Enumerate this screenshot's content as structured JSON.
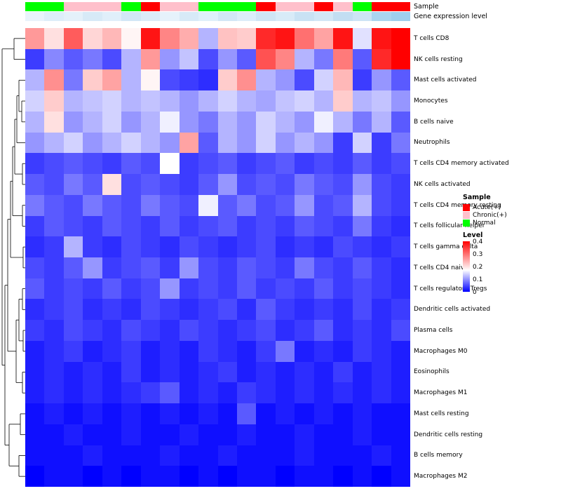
{
  "chart_data": {
    "type": "heatmap",
    "title": "",
    "rows": [
      "T cells CD8",
      "NK cells resting",
      "Mast cells activated",
      "Monocytes",
      "B cells naive",
      "Neutrophils",
      "T cells CD4 memory activated",
      "NK cells activated",
      "T cells CD4 memory resting",
      "T cells follicular helper",
      "T cells gamma delta",
      "T cells CD4 naive",
      "T cells regulatory  Tregs",
      "Dendritic cells activated",
      "Plasma cells",
      "Macrophages M0",
      "Eosinophils",
      "Macrophages M1",
      "Mast cells resting",
      "Dendritic cells resting",
      "B cells memory",
      "Macrophages M2"
    ],
    "num_columns": 20,
    "value_range": [
      0,
      0.4
    ],
    "colormap": {
      "low": "#0000ff",
      "mid": "#ffffff",
      "high": "#ff0000",
      "mid_value": 0.17,
      "max_value": 0.42
    },
    "values": [
      [
        0.27,
        0.2,
        0.33,
        0.21,
        0.24,
        0.18,
        0.4,
        0.29,
        0.25,
        0.12,
        0.23,
        0.22,
        0.38,
        0.4,
        0.31,
        0.26,
        0.4,
        0.15,
        0.4,
        0.42
      ],
      [
        0.04,
        0.09,
        0.06,
        0.08,
        0.05,
        0.12,
        0.27,
        0.1,
        0.13,
        0.05,
        0.1,
        0.06,
        0.34,
        0.29,
        0.12,
        0.08,
        0.3,
        0.06,
        0.38,
        0.42
      ],
      [
        0.12,
        0.28,
        0.08,
        0.22,
        0.26,
        0.12,
        0.18,
        0.05,
        0.04,
        0.03,
        0.22,
        0.28,
        0.12,
        0.1,
        0.05,
        0.14,
        0.24,
        0.04,
        0.1,
        0.06
      ],
      [
        0.14,
        0.22,
        0.12,
        0.13,
        0.14,
        0.12,
        0.13,
        0.12,
        0.1,
        0.12,
        0.14,
        0.12,
        0.11,
        0.13,
        0.14,
        0.12,
        0.22,
        0.12,
        0.13,
        0.1
      ],
      [
        0.12,
        0.2,
        0.1,
        0.12,
        0.14,
        0.1,
        0.12,
        0.16,
        0.1,
        0.08,
        0.12,
        0.1,
        0.14,
        0.12,
        0.1,
        0.16,
        0.12,
        0.08,
        0.12,
        0.06
      ],
      [
        0.1,
        0.12,
        0.14,
        0.1,
        0.12,
        0.14,
        0.12,
        0.1,
        0.26,
        0.06,
        0.12,
        0.1,
        0.14,
        0.1,
        0.12,
        0.1,
        0.04,
        0.14,
        0.04,
        0.08
      ],
      [
        0.04,
        0.05,
        0.06,
        0.05,
        0.04,
        0.06,
        0.05,
        0.17,
        0.04,
        0.05,
        0.06,
        0.04,
        0.05,
        0.06,
        0.04,
        0.05,
        0.04,
        0.06,
        0.04,
        0.05
      ],
      [
        0.06,
        0.05,
        0.08,
        0.06,
        0.2,
        0.05,
        0.06,
        0.05,
        0.04,
        0.06,
        0.1,
        0.05,
        0.06,
        0.05,
        0.08,
        0.06,
        0.05,
        0.1,
        0.05,
        0.04
      ],
      [
        0.08,
        0.06,
        0.05,
        0.08,
        0.06,
        0.05,
        0.08,
        0.06,
        0.05,
        0.16,
        0.06,
        0.08,
        0.05,
        0.06,
        0.1,
        0.05,
        0.06,
        0.12,
        0.05,
        0.04
      ],
      [
        0.04,
        0.06,
        0.05,
        0.04,
        0.06,
        0.05,
        0.04,
        0.06,
        0.04,
        0.05,
        0.06,
        0.04,
        0.05,
        0.04,
        0.06,
        0.05,
        0.04,
        0.08,
        0.04,
        0.03
      ],
      [
        0.03,
        0.04,
        0.12,
        0.04,
        0.03,
        0.05,
        0.04,
        0.03,
        0.05,
        0.04,
        0.03,
        0.04,
        0.05,
        0.03,
        0.04,
        0.03,
        0.05,
        0.04,
        0.03,
        0.04
      ],
      [
        0.05,
        0.04,
        0.06,
        0.1,
        0.04,
        0.05,
        0.06,
        0.04,
        0.1,
        0.05,
        0.04,
        0.06,
        0.05,
        0.04,
        0.08,
        0.05,
        0.04,
        0.06,
        0.04,
        0.03
      ],
      [
        0.06,
        0.04,
        0.05,
        0.04,
        0.06,
        0.04,
        0.05,
        0.1,
        0.04,
        0.05,
        0.04,
        0.06,
        0.04,
        0.05,
        0.04,
        0.06,
        0.04,
        0.05,
        0.04,
        0.03
      ],
      [
        0.03,
        0.04,
        0.05,
        0.03,
        0.04,
        0.03,
        0.05,
        0.04,
        0.03,
        0.04,
        0.05,
        0.03,
        0.06,
        0.04,
        0.03,
        0.04,
        0.03,
        0.05,
        0.03,
        0.04
      ],
      [
        0.04,
        0.03,
        0.05,
        0.04,
        0.03,
        0.05,
        0.04,
        0.03,
        0.05,
        0.04,
        0.03,
        0.04,
        0.05,
        0.03,
        0.04,
        0.06,
        0.03,
        0.04,
        0.03,
        0.05
      ],
      [
        0.02,
        0.03,
        0.04,
        0.02,
        0.03,
        0.04,
        0.02,
        0.03,
        0.02,
        0.04,
        0.03,
        0.02,
        0.04,
        0.08,
        0.02,
        0.03,
        0.02,
        0.04,
        0.03,
        0.02
      ],
      [
        0.02,
        0.03,
        0.02,
        0.03,
        0.02,
        0.04,
        0.02,
        0.03,
        0.02,
        0.03,
        0.04,
        0.02,
        0.03,
        0.02,
        0.03,
        0.02,
        0.04,
        0.02,
        0.03,
        0.02
      ],
      [
        0.02,
        0.03,
        0.02,
        0.03,
        0.02,
        0.03,
        0.04,
        0.06,
        0.02,
        0.03,
        0.02,
        0.04,
        0.03,
        0.02,
        0.03,
        0.02,
        0.03,
        0.02,
        0.03,
        0.02
      ],
      [
        0.01,
        0.02,
        0.01,
        0.02,
        0.01,
        0.02,
        0.01,
        0.02,
        0.01,
        0.02,
        0.01,
        0.06,
        0.01,
        0.02,
        0.01,
        0.02,
        0.01,
        0.02,
        0.01,
        0.01
      ],
      [
        0.01,
        0.01,
        0.02,
        0.01,
        0.01,
        0.02,
        0.01,
        0.01,
        0.02,
        0.01,
        0.01,
        0.02,
        0.01,
        0.01,
        0.02,
        0.01,
        0.01,
        0.02,
        0.01,
        0.01
      ],
      [
        0.01,
        0.01,
        0.01,
        0.02,
        0.01,
        0.01,
        0.01,
        0.02,
        0.01,
        0.01,
        0.02,
        0.01,
        0.01,
        0.01,
        0.02,
        0.01,
        0.01,
        0.01,
        0.02,
        0.01
      ],
      [
        0.0,
        0.01,
        0.01,
        0.0,
        0.01,
        0.0,
        0.01,
        0.01,
        0.0,
        0.01,
        0.0,
        0.01,
        0.01,
        0.0,
        0.01,
        0.01,
        0.0,
        0.01,
        0.0,
        0.01
      ]
    ],
    "column_annotations": {
      "sample": {
        "label": "Sample",
        "values": [
          "Normal",
          "Normal",
          "Chronic(+)",
          "Chronic(+)",
          "Chronic(+)",
          "Normal",
          "Acute(+)",
          "Chronic(+)",
          "Chronic(+)",
          "Normal",
          "Normal",
          "Normal",
          "Acute(+)",
          "Chronic(+)",
          "Chronic(+)",
          "Acute(+)",
          "Chronic(+)",
          "Normal",
          "Acute(+)",
          "Acute(+)"
        ],
        "colors": {
          "Acute(+)": "#ff0000",
          "Chronic(+)": "#ffc0cb",
          "Normal": "#00ff00"
        }
      },
      "expression": {
        "label": "Gene expression level",
        "cell_colors": [
          "#e9f3fb",
          "#ddeef9",
          "#e4f1fa",
          "#d7eaf7",
          "#e0effa",
          "#d2e7f6",
          "#dbecf8",
          "#e6f2fb",
          "#d7eaf7",
          "#dff0fa",
          "#d2e7f6",
          "#dcedf9",
          "#cfe5f5",
          "#d8ebf8",
          "#c9e2f4",
          "#d2e7f6",
          "#c2def2",
          "#cde4f5",
          "#aad5f0",
          "#9fcfee"
        ]
      }
    },
    "legends": {
      "sample": {
        "title": "Sample",
        "entries": [
          {
            "label": "Acute(+)",
            "color": "#ff0000"
          },
          {
            "label": "Chronic(+)",
            "color": "#ffc0cb"
          },
          {
            "label": "Normal",
            "color": "#00ff00"
          }
        ]
      },
      "level": {
        "title": "Level",
        "ticks": [
          "0.4",
          "0.3",
          "0.2",
          "0.1",
          "0"
        ],
        "gradient": [
          "#ff0000",
          "#ffffff",
          "#0000ff"
        ]
      }
    },
    "dendrogram": {
      "tree": {
        "x": 3,
        "c": [
          {
            "x": 20,
            "c": [
              {
                "r": 0
              },
              {
                "r": 1
              }
            ]
          },
          {
            "x": 7,
            "c": [
              {
                "x": 11,
                "c": [
                  {
                    "x": 15,
                    "c": [
                      {
                        "x": 18,
                        "c": [
                          {
                            "x": 21,
                            "c": [
                              {
                                "x": 24,
                                "c": [
                                  {
                                    "x": 27,
                                    "c": [
                                      {
                                        "r": 2
                                      },
                                      {
                                        "x": 31,
                                        "c": [
                                          {
                                            "r": 3
                                          },
                                          {
                                            "r": 4
                                          }
                                        ]
                                      }
                                    ]
                                  },
                                  {
                                    "r": 5
                                  }
                                ]
                              },
                              {
                                "x": 32,
                                "c": [
                                  {
                                    "r": 6
                                  },
                                  {
                                    "r": 7
                                  }
                                ]
                              }
                            ]
                          },
                          {
                            "x": 32,
                            "c": [
                              {
                                "r": 8
                              },
                              {
                                "r": 9
                              }
                            ]
                          }
                        ]
                      },
                      {
                        "x": 33,
                        "c": [
                          {
                            "r": 10
                          },
                          {
                            "r": 11
                          }
                        ]
                      }
                    ]
                  },
                  {
                    "x": 23,
                    "c": [
                      {
                        "x": 27,
                        "c": [
                          {
                            "x": 32,
                            "c": [
                              {
                                "r": 12
                              },
                              {
                                "r": 13
                              }
                            ]
                          },
                          {
                            "x": 33,
                            "c": [
                              {
                                "r": 14
                              },
                              {
                                "r": 15
                              }
                            ]
                          }
                        ]
                      },
                      {
                        "x": 32,
                        "c": [
                          {
                            "r": 16
                          },
                          {
                            "r": 17
                          }
                        ]
                      }
                    ]
                  }
                ]
              },
              {
                "x": 13,
                "c": [
                  {
                    "x": 29,
                    "c": [
                      {
                        "r": 18
                      },
                      {
                        "r": 19
                      }
                    ]
                  },
                  {
                    "x": 27,
                    "c": [
                      {
                        "r": 20
                      },
                      {
                        "r": 21
                      }
                    ]
                  }
                ]
              }
            ]
          }
        ]
      }
    }
  }
}
